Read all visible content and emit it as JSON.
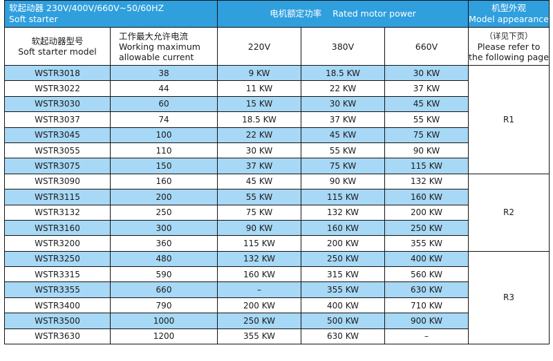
{
  "header": {
    "title_cn": "软起动器 230V/400V/660V~50/60HZ",
    "title_en": "Soft starter",
    "power_cn": "电机额定功率",
    "power_en": "Rated motor power",
    "appearance_cn": "机型外观",
    "appearance_en": "Model appearance"
  },
  "subheader": {
    "model_cn": "软起动器型号",
    "model_en": "Soft starter model",
    "current_cn": "工作最大允许电流",
    "current_en_1": "Working maximum",
    "current_en_2": "allowable current",
    "v220": "220V",
    "v380": "380V",
    "v660": "660V",
    "refer_cn": "（详见下页）",
    "refer_en_1": "Please refer to",
    "refer_en_2": "the following page"
  },
  "rows": [
    {
      "model": "WSTR3018",
      "current": "38",
      "p220": "9 KW",
      "p380": "18.5 KW",
      "p660": "30 KW"
    },
    {
      "model": "WSTR3022",
      "current": "44",
      "p220": "11 KW",
      "p380": "22 KW",
      "p660": "37 KW"
    },
    {
      "model": "WSTR3030",
      "current": "60",
      "p220": "15 KW",
      "p380": "30 KW",
      "p660": "45 KW"
    },
    {
      "model": "WSTR3037",
      "current": "74",
      "p220": "18.5 KW",
      "p380": "37 KW",
      "p660": "55 KW"
    },
    {
      "model": "WSTR3045",
      "current": "100",
      "p220": "22 KW",
      "p380": "45 KW",
      "p660": "75 KW"
    },
    {
      "model": "WSTR3055",
      "current": "110",
      "p220": "30 KW",
      "p380": "55 KW",
      "p660": "90 KW"
    },
    {
      "model": "WSTR3075",
      "current": "150",
      "p220": "37 KW",
      "p380": "75 KW",
      "p660": "115 KW"
    },
    {
      "model": "WSTR3090",
      "current": "160",
      "p220": "45 KW",
      "p380": "90 KW",
      "p660": "132 KW"
    },
    {
      "model": "WSTR3115",
      "current": "200",
      "p220": "55 KW",
      "p380": "115 KW",
      "p660": "160 KW"
    },
    {
      "model": "WSTR3132",
      "current": "250",
      "p220": "75 KW",
      "p380": "132 KW",
      "p660": "200 KW"
    },
    {
      "model": "WSTR3160",
      "current": "300",
      "p220": "90 KW",
      "p380": "160 KW",
      "p660": "250 KW"
    },
    {
      "model": "WSTR3200",
      "current": "360",
      "p220": "115 KW",
      "p380": "200 KW",
      "p660": "355 KW"
    },
    {
      "model": "WSTR3250",
      "current": "480",
      "p220": "132 KW",
      "p380": "250 KW",
      "p660": "400 KW"
    },
    {
      "model": "WSTR3315",
      "current": "590",
      "p220": "160 KW",
      "p380": "315 KW",
      "p660": "560 KW"
    },
    {
      "model": "WSTR3355",
      "current": "660",
      "p220": "–",
      "p380": "355 KW",
      "p660": "630 KW"
    },
    {
      "model": "WSTR3400",
      "current": "790",
      "p220": "200 KW",
      "p380": "400 KW",
      "p660": "710 KW"
    },
    {
      "model": "WSTR3500",
      "current": "1000",
      "p220": "250 KW",
      "p380": "500 KW",
      "p660": "900 KW"
    },
    {
      "model": "WSTR3630",
      "current": "1200",
      "p220": "355 KW",
      "p380": "630 KW",
      "p660": "–"
    }
  ],
  "groups": [
    {
      "label": "R1"
    },
    {
      "label": "R2"
    },
    {
      "label": "R3"
    }
  ],
  "colors": {
    "header_blue": "#2f9fde",
    "stripe_blue": "#a7d8f5"
  }
}
